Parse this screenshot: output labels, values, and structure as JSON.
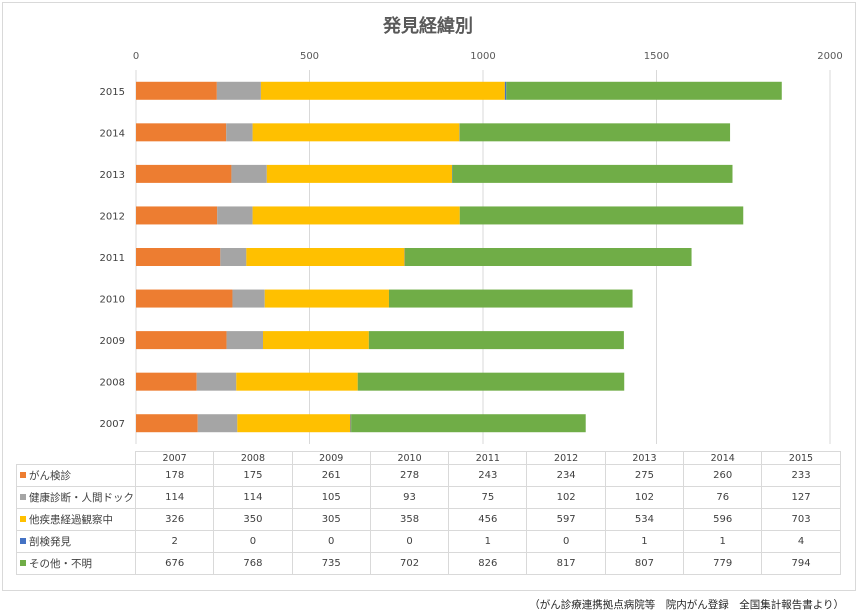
{
  "chart_data": {
    "type": "bar",
    "orientation": "horizontal",
    "stacked": true,
    "title": "発見経緯別",
    "categories": [
      "2015",
      "2014",
      "2013",
      "2012",
      "2011",
      "2010",
      "2009",
      "2008",
      "2007"
    ],
    "xlim": [
      0,
      2000
    ],
    "xticks": [
      "0",
      "500",
      "1000",
      "1500",
      "2000"
    ],
    "grid": true,
    "years": [
      "2007",
      "2008",
      "2009",
      "2010",
      "2011",
      "2012",
      "2013",
      "2014",
      "2015"
    ],
    "series": [
      {
        "name": "がん検診",
        "color": "#ed7d31",
        "values": [
          178,
          175,
          261,
          278,
          243,
          234,
          275,
          260,
          233
        ]
      },
      {
        "name": "健康診断・人間ドック",
        "color": "#a5a5a5",
        "values": [
          114,
          114,
          105,
          93,
          75,
          102,
          102,
          76,
          127
        ]
      },
      {
        "name": "他疾患経過観察中",
        "color": "#ffc000",
        "values": [
          326,
          350,
          305,
          358,
          456,
          597,
          534,
          596,
          703
        ]
      },
      {
        "name": "剖検発見",
        "color": "#4472c4",
        "values": [
          2,
          0,
          0,
          0,
          1,
          0,
          1,
          1,
          4
        ]
      },
      {
        "name": "その他・不明",
        "color": "#70ad47",
        "values": [
          676,
          768,
          735,
          702,
          826,
          817,
          807,
          779,
          794
        ]
      }
    ]
  },
  "source_note": "（がん診療連携拠点病院等　院内がん登録　全国集計報告書より）"
}
